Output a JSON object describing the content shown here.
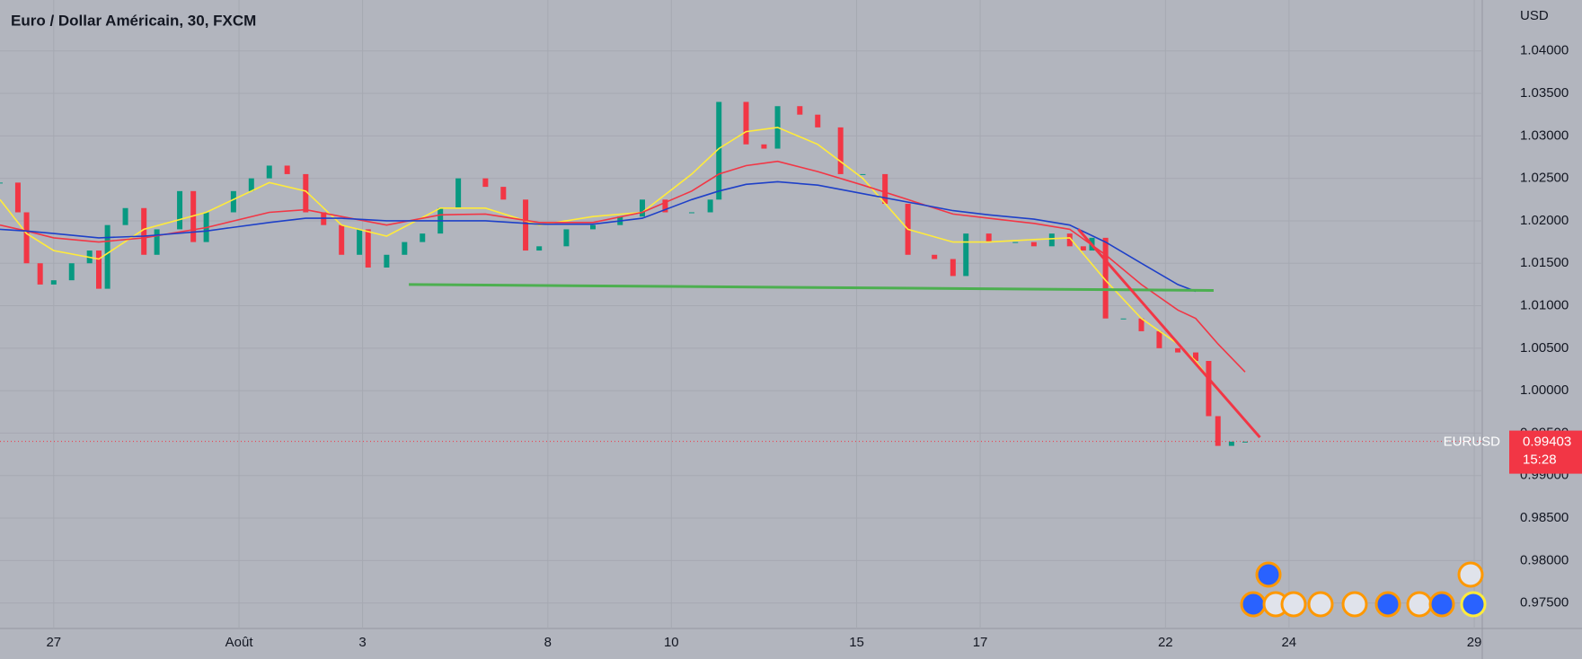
{
  "chart_data": {
    "type": "candlestick-line",
    "title": "Euro / Dollar Américain, 30, FXCM",
    "y_unit": "USD",
    "symbol": "EURUSD",
    "last_price": {
      "value": 0.99403,
      "label": "0.99403"
    },
    "countdown": "15:28",
    "xlim": [
      -0.87,
      23.13
    ],
    "xticks": [
      {
        "value": 0,
        "label": "27"
      },
      {
        "value": 3,
        "label": "Août"
      },
      {
        "value": 5,
        "label": "3"
      },
      {
        "value": 8,
        "label": "8"
      },
      {
        "value": 10,
        "label": "10"
      },
      {
        "value": 13,
        "label": "15"
      },
      {
        "value": 15,
        "label": "17"
      },
      {
        "value": 18,
        "label": "22"
      },
      {
        "value": 20,
        "label": "24"
      },
      {
        "value": 23,
        "label": "29"
      }
    ],
    "ylim": [
      0.972,
      1.046
    ],
    "yticks": [
      {
        "value": 1.04,
        "label": "1.04000"
      },
      {
        "value": 1.035,
        "label": "1.03500"
      },
      {
        "value": 1.03,
        "label": "1.03000"
      },
      {
        "value": 1.025,
        "label": "1.02500"
      },
      {
        "value": 1.02,
        "label": "1.02000"
      },
      {
        "value": 1.015,
        "label": "1.01500"
      },
      {
        "value": 1.01,
        "label": "1.01000"
      },
      {
        "value": 1.005,
        "label": "1.00500"
      },
      {
        "value": 1.0,
        "label": "1.00000"
      },
      {
        "value": 0.995,
        "label": "0.99500"
      },
      {
        "value": 0.99,
        "label": "0.99000"
      },
      {
        "value": 0.985,
        "label": "0.98500"
      },
      {
        "value": 0.98,
        "label": "0.98000"
      },
      {
        "value": 0.975,
        "label": "0.97500"
      }
    ],
    "grid": true,
    "price": {
      "up_color": "#089981",
      "down_color": "#f23645",
      "x": [
        -0.87,
        -0.58,
        -0.44,
        -0.22,
        0,
        0.29,
        0.58,
        0.73,
        0.87,
        1.16,
        1.46,
        1.67,
        2.04,
        2.26,
        2.47,
        2.91,
        3.2,
        3.49,
        3.78,
        4.08,
        4.37,
        4.66,
        4.95,
        5.09,
        5.39,
        5.68,
        5.97,
        6.26,
        6.55,
        6.99,
        7.28,
        7.64,
        7.86,
        8.3,
        8.73,
        9.17,
        9.53,
        9.9,
        10.33,
        10.63,
        10.77,
        11.21,
        11.5,
        11.72,
        12.08,
        12.37,
        12.74,
        13.1,
        13.46,
        13.83,
        14.26,
        14.56,
        14.77,
        15.14,
        15.57,
        15.87,
        16.16,
        16.45,
        16.67,
        16.81,
        17.03,
        17.32,
        17.61,
        17.9,
        18.2,
        18.49,
        18.7,
        18.85,
        19.07,
        19.29
      ],
      "values": [
        1.0245,
        1.021,
        1.015,
        1.0125,
        1.013,
        1.015,
        1.0165,
        1.012,
        1.0195,
        1.0215,
        1.016,
        1.019,
        1.0235,
        1.0175,
        1.021,
        1.0235,
        1.025,
        1.0265,
        1.0255,
        1.021,
        1.0195,
        1.016,
        1.019,
        1.0145,
        1.016,
        1.0175,
        1.0185,
        1.0215,
        1.025,
        1.024,
        1.0225,
        1.0165,
        1.017,
        1.019,
        1.0195,
        1.0205,
        1.0225,
        1.021,
        1.021,
        1.0225,
        1.034,
        1.029,
        1.0285,
        1.0335,
        1.0325,
        1.031,
        1.0255,
        1.0255,
        1.022,
        1.016,
        1.0155,
        1.0135,
        1.0185,
        1.0175,
        1.0175,
        1.017,
        1.0185,
        1.017,
        1.0165,
        1.018,
        1.0085,
        1.0085,
        1.007,
        1.005,
        1.0045,
        1.0035,
        0.997,
        0.9935,
        0.994,
        0.994
      ]
    },
    "ma_x": [
      -0.87,
      -0.44,
      0,
      0.73,
      1.46,
      2.47,
      3.49,
      4.08,
      4.66,
      5.39,
      6.26,
      6.99,
      7.86,
      8.73,
      9.53,
      10.33,
      10.77,
      11.21,
      11.72,
      12.37,
      13.1,
      13.83,
      14.56,
      15.14,
      15.87,
      16.45,
      17.03,
      17.61,
      18.2,
      18.49,
      18.85,
      19.29
    ],
    "series": [
      {
        "color": "#ffeb3b",
        "values": [
          1.0225,
          1.0185,
          1.0165,
          1.0155,
          1.019,
          1.021,
          1.0245,
          1.0235,
          1.0195,
          1.0182,
          1.0215,
          1.0215,
          1.0195,
          1.0205,
          1.021,
          1.0255,
          1.0285,
          1.0305,
          1.031,
          1.029,
          1.025,
          1.019,
          1.0175,
          1.0175,
          1.0178,
          1.018,
          1.013,
          1.0085,
          1.0055,
          1.0035,
          1.0,
          null
        ]
      },
      {
        "color": "#f23645",
        "values": [
          1.0195,
          1.0188,
          1.018,
          1.0175,
          1.018,
          1.0192,
          1.021,
          1.0213,
          1.0205,
          1.0195,
          1.0207,
          1.0208,
          1.0198,
          1.0198,
          1.021,
          1.0235,
          1.0255,
          1.0265,
          1.027,
          1.0258,
          1.0242,
          1.0225,
          1.0208,
          1.0203,
          1.0197,
          1.019,
          1.016,
          1.0125,
          1.0095,
          1.0085,
          1.0055,
          1.0022
        ]
      },
      {
        "color": "#1e40c8",
        "values": [
          1.019,
          1.0188,
          1.0185,
          1.018,
          1.0182,
          1.0188,
          1.0198,
          1.0203,
          1.0203,
          1.02,
          1.02,
          1.02,
          1.0196,
          1.0196,
          1.0203,
          1.0225,
          1.0235,
          1.0243,
          1.0246,
          1.0242,
          1.0232,
          1.0222,
          1.0212,
          1.0207,
          1.0202,
          1.0195,
          1.0175,
          1.015,
          1.0125,
          1.0117,
          null,
          null
        ]
      }
    ],
    "drawings": [
      {
        "color": "#4caf50",
        "x": [
          5.75,
          18.78
        ],
        "y": [
          1.0125,
          1.0118
        ]
      },
      {
        "color": "#f23645",
        "x": [
          16.59,
          19.53
        ],
        "y": [
          1.019,
          0.9945
        ]
      }
    ]
  }
}
